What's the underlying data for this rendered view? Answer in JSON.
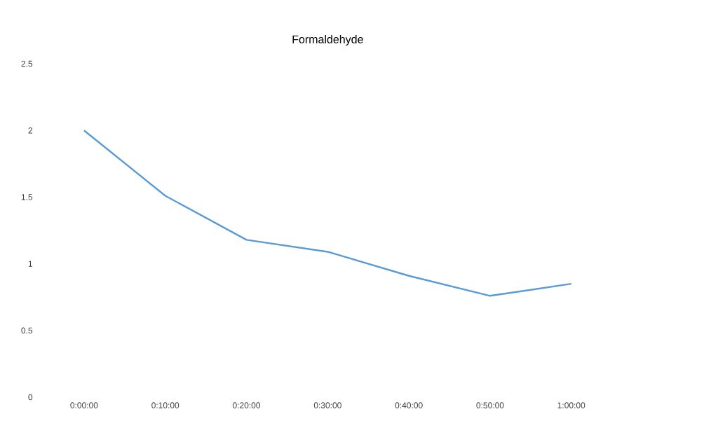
{
  "chart_data": {
    "type": "line",
    "title": "Formaldehyde",
    "categories": [
      "0:00:00",
      "0:10:00",
      "0:20:00",
      "0:30:00",
      "0:40:00",
      "0:50:00",
      "1:00:00"
    ],
    "values": [
      2.0,
      1.51,
      1.18,
      1.09,
      0.91,
      0.76,
      0.85
    ],
    "color": "#5b9bd5",
    "marker": "none",
    "ylim": [
      0,
      2.5
    ],
    "yticks": [
      0,
      0.5,
      1,
      1.5,
      2,
      2.5
    ]
  }
}
